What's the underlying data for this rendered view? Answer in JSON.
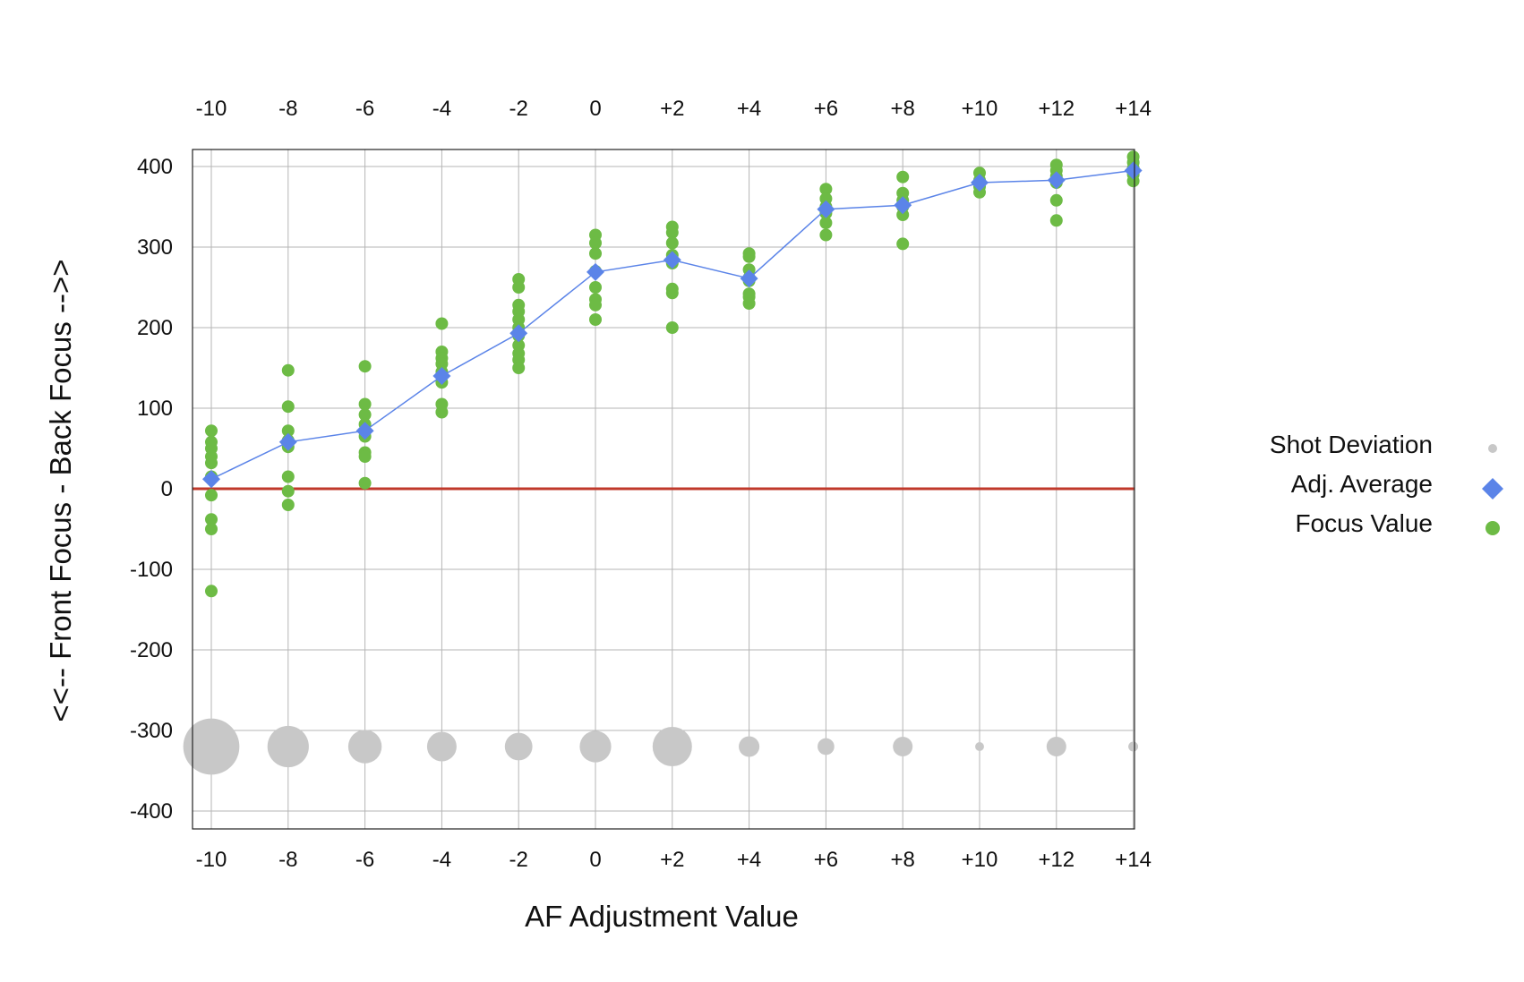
{
  "chart_data": {
    "type": "scatter",
    "xlabel": "AF Adjustment Value",
    "ylabel": "<<-- Front Focus - Back Focus -->>",
    "x_tick_labels": [
      "-10",
      "-8",
      "-6",
      "-4",
      "-2",
      "0",
      "+2",
      "+4",
      "+6",
      "+8",
      "+10",
      "+12",
      "+14"
    ],
    "x_values": [
      -10,
      -8,
      -6,
      -4,
      -2,
      0,
      2,
      4,
      6,
      8,
      10,
      12,
      14
    ],
    "xlim": [
      -10.5,
      14
    ],
    "y_ticks": [
      400,
      300,
      200,
      100,
      0,
      -100,
      -200,
      -300,
      -400
    ],
    "ylim": [
      -420,
      420
    ],
    "grid": true,
    "reference_line": {
      "y": 0,
      "color": "#c0392b"
    },
    "legend": {
      "position": "right",
      "entries": [
        {
          "label": "Shot Deviation",
          "marker": "circle",
          "color": "#c8c8c8"
        },
        {
          "label": "Adj. Average",
          "marker": "diamond",
          "color": "#5b84e8"
        },
        {
          "label": "Focus Value",
          "marker": "circle",
          "color": "#6dbb45"
        }
      ]
    },
    "series": [
      {
        "name": "Focus Value",
        "color": "#6dbb45",
        "points": [
          [
            -10,
            72
          ],
          [
            -10,
            58
          ],
          [
            -10,
            50
          ],
          [
            -10,
            40
          ],
          [
            -10,
            32
          ],
          [
            -10,
            15
          ],
          [
            -10,
            -8
          ],
          [
            -10,
            -38
          ],
          [
            -10,
            -50
          ],
          [
            -10,
            -127
          ],
          [
            -8,
            147
          ],
          [
            -8,
            102
          ],
          [
            -8,
            72
          ],
          [
            -8,
            60
          ],
          [
            -8,
            52
          ],
          [
            -8,
            15
          ],
          [
            -8,
            -3
          ],
          [
            -8,
            -20
          ],
          [
            -6,
            152
          ],
          [
            -6,
            105
          ],
          [
            -6,
            92
          ],
          [
            -6,
            80
          ],
          [
            -6,
            65
          ],
          [
            -6,
            45
          ],
          [
            -6,
            40
          ],
          [
            -6,
            7
          ],
          [
            -4,
            205
          ],
          [
            -4,
            170
          ],
          [
            -4,
            162
          ],
          [
            -4,
            155
          ],
          [
            -4,
            145
          ],
          [
            -4,
            132
          ],
          [
            -4,
            105
          ],
          [
            -4,
            95
          ],
          [
            -2,
            260
          ],
          [
            -2,
            250
          ],
          [
            -2,
            228
          ],
          [
            -2,
            220
          ],
          [
            -2,
            210
          ],
          [
            -2,
            200
          ],
          [
            -2,
            190
          ],
          [
            -2,
            178
          ],
          [
            -2,
            168
          ],
          [
            -2,
            160
          ],
          [
            -2,
            150
          ],
          [
            0,
            315
          ],
          [
            0,
            305
          ],
          [
            0,
            292
          ],
          [
            0,
            270
          ],
          [
            0,
            250
          ],
          [
            0,
            235
          ],
          [
            0,
            228
          ],
          [
            0,
            210
          ],
          [
            2,
            325
          ],
          [
            2,
            318
          ],
          [
            2,
            305
          ],
          [
            2,
            290
          ],
          [
            2,
            285
          ],
          [
            2,
            280
          ],
          [
            2,
            248
          ],
          [
            2,
            243
          ],
          [
            2,
            200
          ],
          [
            4,
            292
          ],
          [
            4,
            288
          ],
          [
            4,
            272
          ],
          [
            4,
            262
          ],
          [
            4,
            258
          ],
          [
            4,
            242
          ],
          [
            4,
            238
          ],
          [
            4,
            230
          ],
          [
            6,
            372
          ],
          [
            6,
            360
          ],
          [
            6,
            350
          ],
          [
            6,
            342
          ],
          [
            6,
            330
          ],
          [
            6,
            315
          ],
          [
            8,
            387
          ],
          [
            8,
            367
          ],
          [
            8,
            358
          ],
          [
            8,
            350
          ],
          [
            8,
            340
          ],
          [
            8,
            304
          ],
          [
            10,
            392
          ],
          [
            10,
            383
          ],
          [
            10,
            375
          ],
          [
            10,
            368
          ],
          [
            12,
            402
          ],
          [
            12,
            395
          ],
          [
            12,
            388
          ],
          [
            12,
            380
          ],
          [
            12,
            358
          ],
          [
            12,
            333
          ],
          [
            14,
            412
          ],
          [
            14,
            405
          ],
          [
            14,
            398
          ],
          [
            14,
            390
          ],
          [
            14,
            382
          ]
        ]
      },
      {
        "name": "Adj. Average",
        "color": "#5b84e8",
        "x": [
          -10,
          -8,
          -6,
          -4,
          -2,
          0,
          2,
          4,
          6,
          8,
          10,
          12,
          14
        ],
        "values": [
          12,
          58,
          72,
          140,
          193,
          269,
          284,
          261,
          347,
          352,
          380,
          383,
          395
        ]
      },
      {
        "name": "Shot Deviation",
        "color": "#c8c8c8",
        "y": -320,
        "x": [
          -10,
          -8,
          -6,
          -4,
          -2,
          0,
          2,
          4,
          6,
          8,
          10,
          12,
          14
        ],
        "values": [
          57,
          42,
          34,
          30,
          28,
          32,
          40,
          21,
          17,
          20,
          9,
          20,
          10
        ]
      }
    ]
  }
}
